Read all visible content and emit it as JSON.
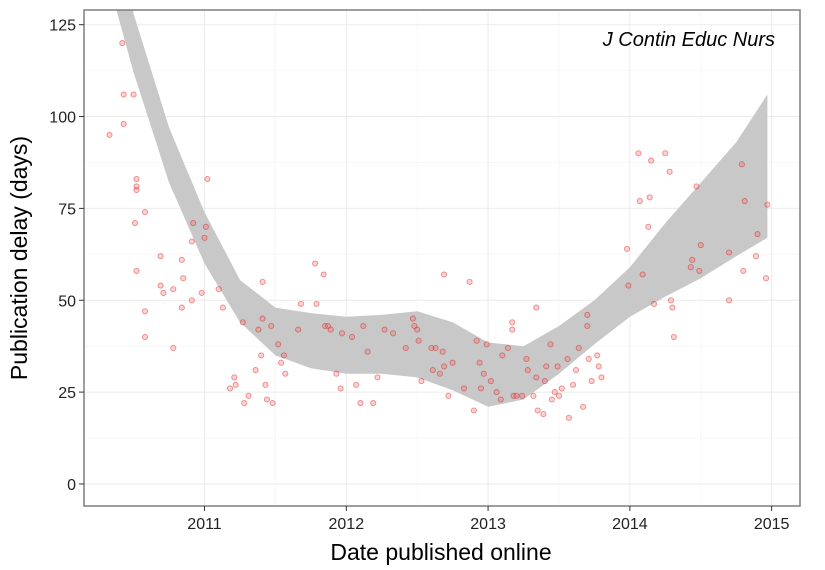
{
  "chart_data": {
    "type": "scatter",
    "annotation": "J Contin Educ Nurs",
    "xlabel": "Date published online",
    "ylabel": "Publication delay (days)",
    "xlim": [
      2010.15,
      2015.2
    ],
    "ylim": [
      -6,
      129
    ],
    "x_ticks": [
      {
        "value": 2011,
        "label": "2011"
      },
      {
        "value": 2012,
        "label": "2012"
      },
      {
        "value": 2013,
        "label": "2013"
      },
      {
        "value": 2014,
        "label": "2014"
      },
      {
        "value": 2015,
        "label": "2015"
      }
    ],
    "y_ticks": [
      {
        "value": 0,
        "label": "0"
      },
      {
        "value": 25,
        "label": "25"
      },
      {
        "value": 50,
        "label": "50"
      },
      {
        "value": 75,
        "label": "75"
      },
      {
        "value": 100,
        "label": "100"
      },
      {
        "value": 125,
        "label": "125"
      }
    ],
    "grid": true,
    "colors": {
      "point_fill": "#ff5a5a",
      "point_stroke": "#d01818",
      "band": "#c8c8c8",
      "panel_border": "#7f7f7f",
      "grid_major": "#ebebeb",
      "grid_minor": "#f5f5f5"
    },
    "smooth_band": {
      "x": [
        2010.3,
        2010.5,
        2010.75,
        2011.0,
        2011.25,
        2011.5,
        2011.75,
        2012.0,
        2012.25,
        2012.5,
        2012.75,
        2013.0,
        2013.25,
        2013.5,
        2013.75,
        2014.0,
        2014.25,
        2014.5,
        2014.75,
        2014.97
      ],
      "lower": [
        140.0,
        112.0,
        82.0,
        60.0,
        44.0,
        35.0,
        31.5,
        30.0,
        30.0,
        29.0,
        25.5,
        21.0,
        23.0,
        30.0,
        38.0,
        45.5,
        51.0,
        56.0,
        62.0,
        67.0
      ],
      "upper": [
        185.0,
        128.0,
        97.0,
        74.0,
        55.5,
        48.0,
        46.5,
        45.5,
        46.0,
        47.0,
        44.0,
        38.5,
        37.5,
        43.0,
        50.0,
        59.0,
        71.0,
        82.0,
        93.0,
        106.0
      ]
    },
    "points": [
      [
        2010.33,
        95
      ],
      [
        2010.42,
        120
      ],
      [
        2010.43,
        106
      ],
      [
        2010.43,
        98
      ],
      [
        2010.5,
        106
      ],
      [
        2010.52,
        83
      ],
      [
        2010.52,
        81
      ],
      [
        2010.52,
        80
      ],
      [
        2010.51,
        71
      ],
      [
        2010.52,
        58
      ],
      [
        2010.58,
        74
      ],
      [
        2010.58,
        47
      ],
      [
        2010.58,
        40
      ],
      [
        2010.69,
        62
      ],
      [
        2010.69,
        54
      ],
      [
        2010.71,
        52
      ],
      [
        2010.78,
        53
      ],
      [
        2010.78,
        37
      ],
      [
        2010.84,
        61
      ],
      [
        2010.85,
        56
      ],
      [
        2010.84,
        48
      ],
      [
        2010.92,
        71
      ],
      [
        2010.91,
        66
      ],
      [
        2010.91,
        50
      ],
      [
        2010.98,
        52
      ],
      [
        2011.02,
        83
      ],
      [
        2011.01,
        70
      ],
      [
        2011.0,
        67
      ],
      [
        2011.1,
        53
      ],
      [
        2011.13,
        48
      ],
      [
        2011.18,
        26
      ],
      [
        2011.21,
        29
      ],
      [
        2011.22,
        27
      ],
      [
        2011.27,
        44
      ],
      [
        2011.28,
        22
      ],
      [
        2011.31,
        24
      ],
      [
        2011.36,
        31
      ],
      [
        2011.38,
        42
      ],
      [
        2011.41,
        45
      ],
      [
        2011.41,
        55
      ],
      [
        2011.4,
        35
      ],
      [
        2011.43,
        27
      ],
      [
        2011.44,
        23
      ],
      [
        2011.47,
        43
      ],
      [
        2011.48,
        22
      ],
      [
        2011.52,
        38
      ],
      [
        2011.54,
        33
      ],
      [
        2011.56,
        35
      ],
      [
        2011.57,
        30
      ],
      [
        2011.66,
        42
      ],
      [
        2011.68,
        49
      ],
      [
        2011.78,
        60
      ],
      [
        2011.79,
        49
      ],
      [
        2011.84,
        57
      ],
      [
        2011.85,
        43
      ],
      [
        2011.87,
        43
      ],
      [
        2011.89,
        42
      ],
      [
        2011.93,
        30
      ],
      [
        2011.96,
        26
      ],
      [
        2011.97,
        41
      ],
      [
        2012.04,
        40
      ],
      [
        2012.07,
        27
      ],
      [
        2012.1,
        22
      ],
      [
        2012.12,
        43
      ],
      [
        2012.15,
        36
      ],
      [
        2012.19,
        22
      ],
      [
        2012.22,
        29
      ],
      [
        2012.27,
        42
      ],
      [
        2012.33,
        41
      ],
      [
        2012.42,
        37
      ],
      [
        2012.47,
        45
      ],
      [
        2012.48,
        43
      ],
      [
        2012.5,
        42
      ],
      [
        2012.51,
        39
      ],
      [
        2012.53,
        28
      ],
      [
        2012.6,
        37
      ],
      [
        2012.61,
        31
      ],
      [
        2012.63,
        37
      ],
      [
        2012.66,
        30
      ],
      [
        2012.68,
        36
      ],
      [
        2012.69,
        57
      ],
      [
        2012.69,
        32
      ],
      [
        2012.72,
        24
      ],
      [
        2012.75,
        33
      ],
      [
        2012.83,
        26
      ],
      [
        2012.87,
        55
      ],
      [
        2012.9,
        20
      ],
      [
        2012.92,
        39
      ],
      [
        2012.94,
        33
      ],
      [
        2012.95,
        26
      ],
      [
        2012.97,
        30
      ],
      [
        2012.99,
        38
      ],
      [
        2013.02,
        28
      ],
      [
        2013.06,
        25
      ],
      [
        2013.09,
        23
      ],
      [
        2013.1,
        35
      ],
      [
        2013.14,
        37
      ],
      [
        2013.17,
        44
      ],
      [
        2013.17,
        42
      ],
      [
        2013.18,
        24
      ],
      [
        2013.2,
        24
      ],
      [
        2013.24,
        24
      ],
      [
        2013.27,
        34
      ],
      [
        2013.28,
        31
      ],
      [
        2013.32,
        24
      ],
      [
        2013.34,
        48
      ],
      [
        2013.34,
        29
      ],
      [
        2013.35,
        20
      ],
      [
        2013.39,
        19
      ],
      [
        2013.4,
        28
      ],
      [
        2013.41,
        32
      ],
      [
        2013.44,
        38
      ],
      [
        2013.45,
        23
      ],
      [
        2013.47,
        25
      ],
      [
        2013.49,
        32
      ],
      [
        2013.5,
        24
      ],
      [
        2013.52,
        26
      ],
      [
        2013.56,
        34
      ],
      [
        2013.57,
        18
      ],
      [
        2013.6,
        27
      ],
      [
        2013.62,
        31
      ],
      [
        2013.64,
        37
      ],
      [
        2013.67,
        21
      ],
      [
        2013.7,
        46
      ],
      [
        2013.7,
        43
      ],
      [
        2013.71,
        34
      ],
      [
        2013.73,
        28
      ],
      [
        2013.77,
        35
      ],
      [
        2013.78,
        32
      ],
      [
        2013.8,
        29
      ],
      [
        2013.98,
        64
      ],
      [
        2013.99,
        54
      ],
      [
        2014.06,
        90
      ],
      [
        2014.07,
        77
      ],
      [
        2014.09,
        57
      ],
      [
        2014.13,
        70
      ],
      [
        2014.14,
        78
      ],
      [
        2014.15,
        88
      ],
      [
        2014.17,
        49
      ],
      [
        2014.25,
        90
      ],
      [
        2014.28,
        85
      ],
      [
        2014.29,
        50
      ],
      [
        2014.3,
        48
      ],
      [
        2014.31,
        40
      ],
      [
        2014.43,
        59
      ],
      [
        2014.44,
        61
      ],
      [
        2014.47,
        81
      ],
      [
        2014.49,
        58
      ],
      [
        2014.5,
        65
      ],
      [
        2014.7,
        50
      ],
      [
        2014.7,
        63
      ],
      [
        2014.79,
        87
      ],
      [
        2014.81,
        77
      ],
      [
        2014.8,
        58
      ],
      [
        2014.89,
        62
      ],
      [
        2014.9,
        68
      ],
      [
        2014.96,
        56
      ],
      [
        2014.97,
        76
      ]
    ]
  }
}
